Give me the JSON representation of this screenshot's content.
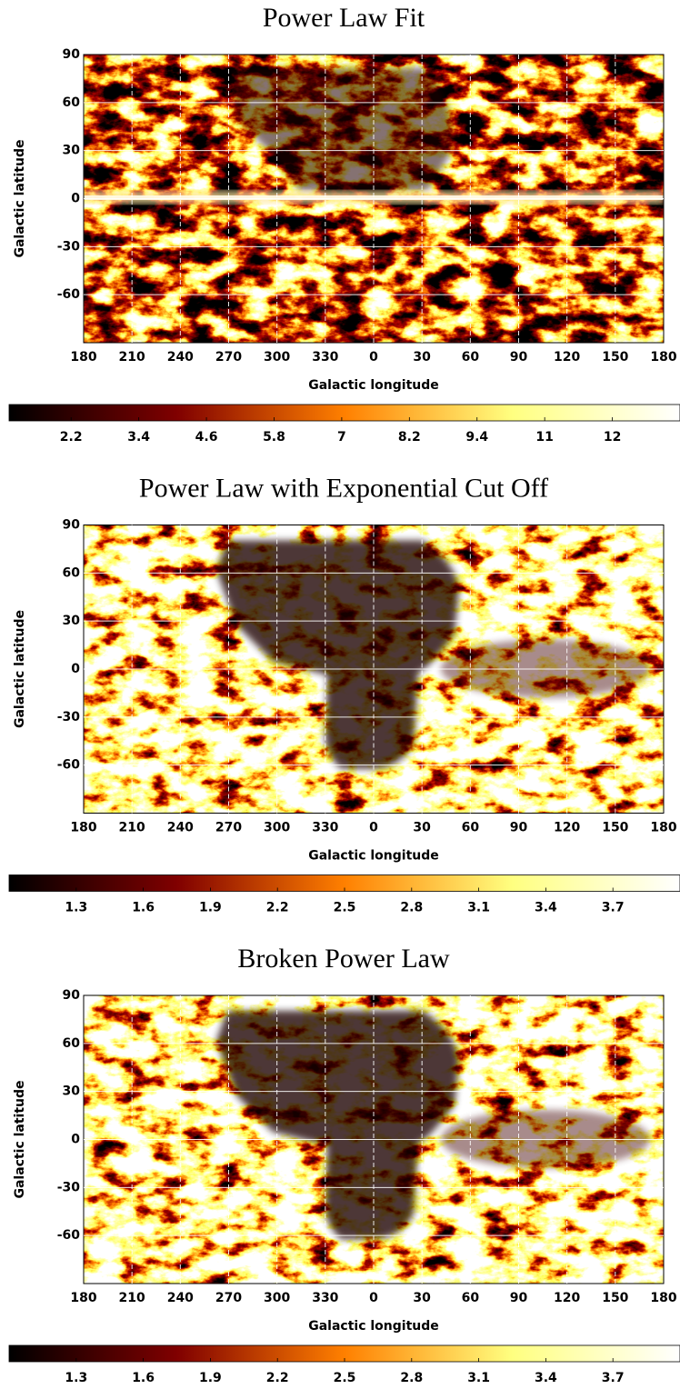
{
  "chart_data": [
    {
      "type": "heatmap",
      "title": "Power Law Fit",
      "xlabel": "Galactic longitude",
      "ylabel": "Galactic latitude",
      "xlim": [
        -180,
        180
      ],
      "xticks": [
        {
          "value": -180,
          "label": "180"
        },
        {
          "value": -150,
          "label": "210"
        },
        {
          "value": -120,
          "label": "240"
        },
        {
          "value": -90,
          "label": "270"
        },
        {
          "value": -60,
          "label": "300"
        },
        {
          "value": -30,
          "label": "330"
        },
        0,
        30,
        60,
        90,
        120,
        150,
        180
      ],
      "ylim": [
        -90,
        90
      ],
      "yticks": [
        90,
        60,
        30,
        0,
        -30,
        -60
      ],
      "grid": true,
      "colormap": "afmhot",
      "clim": [
        1.1,
        13.0
      ],
      "cticks": [
        2.2,
        3.4,
        4.6,
        5.8,
        7,
        8.2,
        9.4,
        {
          "value": 10.6,
          "label": "11"
        },
        {
          "value": 11.8,
          "label": "12"
        }
      ]
    },
    {
      "type": "heatmap",
      "title": "Power Law with Exponential Cut Off",
      "xlabel": "Galactic longitude",
      "ylabel": "Galactic latitude",
      "xlim": [
        -180,
        180
      ],
      "xticks": [
        {
          "value": -180,
          "label": "180"
        },
        {
          "value": -150,
          "label": "210"
        },
        {
          "value": -120,
          "label": "240"
        },
        {
          "value": -90,
          "label": "270"
        },
        {
          "value": -60,
          "label": "300"
        },
        {
          "value": -30,
          "label": "330"
        },
        0,
        30,
        60,
        90,
        120,
        150,
        180
      ],
      "ylim": [
        -90,
        90
      ],
      "yticks": [
        90,
        60,
        30,
        0,
        -30,
        -60
      ],
      "grid": true,
      "colormap": "afmhot",
      "clim": [
        1.0,
        4.0
      ],
      "cticks": [
        1.3,
        1.6,
        1.9,
        2.2,
        2.5,
        2.8,
        3.1,
        3.4,
        3.7
      ]
    },
    {
      "type": "heatmap",
      "title": "Broken Power Law",
      "xlabel": "Galactic longitude",
      "ylabel": "Galactic latitude",
      "xlim": [
        -180,
        180
      ],
      "xticks": [
        {
          "value": -180,
          "label": "180"
        },
        {
          "value": -150,
          "label": "210"
        },
        {
          "value": -120,
          "label": "240"
        },
        {
          "value": -90,
          "label": "270"
        },
        {
          "value": -60,
          "label": "300"
        },
        {
          "value": -30,
          "label": "330"
        },
        0,
        30,
        60,
        90,
        120,
        150,
        180
      ],
      "ylim": [
        -90,
        90
      ],
      "yticks": [
        90,
        60,
        30,
        0,
        -30,
        -60
      ],
      "grid": true,
      "colormap": "afmhot",
      "clim": [
        1.0,
        4.0
      ],
      "cticks": [
        1.3,
        1.6,
        1.9,
        2.2,
        2.5,
        2.8,
        3.1,
        3.4,
        3.7
      ]
    }
  ]
}
